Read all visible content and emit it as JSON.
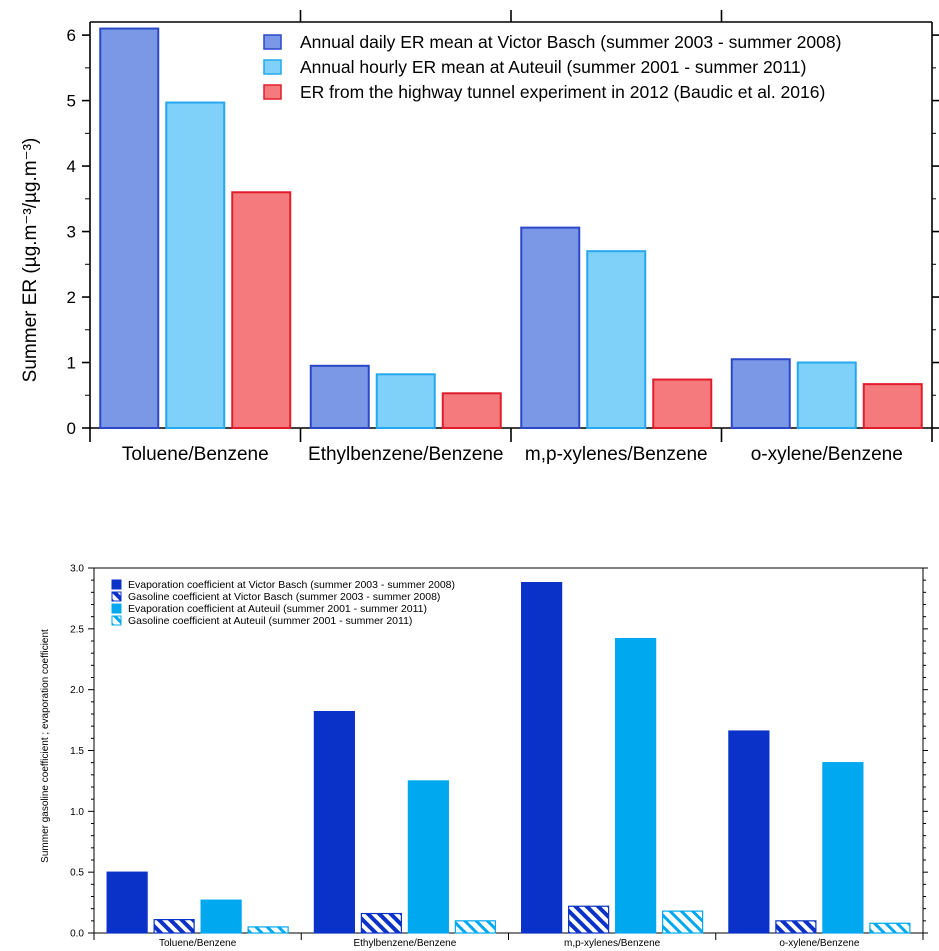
{
  "chart_data": [
    {
      "type": "bar",
      "categories": [
        "Toluene/Benzene",
        "Ethylbenzene/Benzene",
        "m,p-xylenes/Benzene",
        "o-xylene/Benzene"
      ],
      "ylabel": "Summer ER (µg.m⁻³/µg.m⁻³)",
      "ylim": [
        0,
        6.2
      ],
      "yticks": [
        "0",
        "1",
        "2",
        "3",
        "4",
        "5",
        "6"
      ],
      "legend_position": "top-right",
      "series": [
        {
          "name": "Annual daily ER mean at Victor Basch (summer 2003 - summer 2008)",
          "values": [
            6.1,
            0.95,
            3.06,
            1.05
          ],
          "color": "#7b98e6",
          "stroke": "#2a48c8"
        },
        {
          "name": "Annual hourly ER mean at Auteuil (summer 2001 - summer 2011)",
          "values": [
            4.97,
            0.82,
            2.7,
            1.0
          ],
          "color": "#7fd1fa",
          "stroke": "#25a8ee"
        },
        {
          "name": "ER from the highway tunnel experiment in 2012 (Baudic et al. 2016)",
          "values": [
            3.6,
            0.53,
            0.74,
            0.67
          ],
          "color": "#f57a7e",
          "stroke": "#e01e2b"
        }
      ]
    },
    {
      "type": "bar",
      "categories": [
        "Toluene/Benzene",
        "Ethylbenzene/Benzene",
        "m,p-xylenes/Benzene",
        "o-xylene/Benzene"
      ],
      "ylabel": "Summer gasoline coefficient ; evaporation coefficient",
      "ylim": [
        0,
        3.0
      ],
      "yticks": [
        "0.0",
        "0.5",
        "1.0",
        "1.5",
        "2.0",
        "2.5",
        "3.0"
      ],
      "legend_position": "top-left",
      "series": [
        {
          "name": "Evaporation coefficient at Victor Basch (summer 2003 - summer 2008)",
          "values": [
            0.5,
            1.82,
            2.88,
            1.66
          ],
          "color": "#0a32c8",
          "hatched": false
        },
        {
          "name": "Gasoline coefficient at Victor Basch (summer 2003 - summer 2008)",
          "values": [
            0.11,
            0.16,
            0.22,
            0.1
          ],
          "color": "#0a32c8",
          "hatched": true
        },
        {
          "name": "Evaporation coefficient at Auteuil (summer 2001 - summer 2011)",
          "values": [
            0.27,
            1.25,
            2.42,
            1.4
          ],
          "color": "#00a8f0",
          "hatched": false
        },
        {
          "name": "Gasoline coefficient at Auteuil (summer 2001 - summer 2011)",
          "values": [
            0.05,
            0.1,
            0.18,
            0.08
          ],
          "color": "#00a8f0",
          "hatched": true
        }
      ]
    }
  ]
}
